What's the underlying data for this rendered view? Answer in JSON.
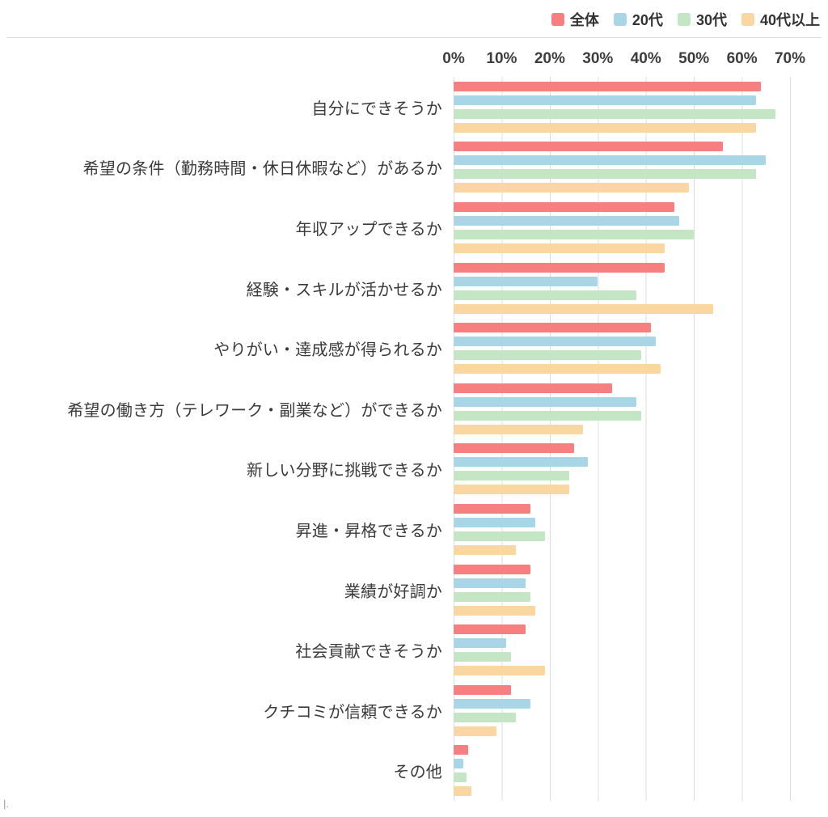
{
  "legend": {
    "position": "top-right"
  },
  "axis": {
    "ticks": [
      "0%",
      "10%",
      "20%",
      "30%",
      "40%",
      "50%",
      "60%",
      "70%"
    ]
  },
  "artifact_marks": "|.",
  "colors": {
    "zentai": "#F77F7F",
    "twenties": "#A8D6E6",
    "thirties": "#C5E6C5",
    "forties_plus": "#FAD7A0",
    "gridline": "#dcdcdc"
  },
  "chart_data": {
    "type": "bar",
    "orientation": "horizontal",
    "unit": "%",
    "xlim": [
      0,
      70
    ],
    "grid": true,
    "legend_position": "top-right",
    "title": "",
    "xlabel": "",
    "ylabel": "",
    "categories": [
      "自分にできそうか",
      "希望の条件（勤務時間・休日休暇など）があるか",
      "年収アップできるか",
      "経験・スキルが活かせるか",
      "やりがい・達成感が得られるか",
      "希望の働き方（テレワーク・副業など）ができるか",
      "新しい分野に挑戦できるか",
      "昇進・昇格できるか",
      "業績が好調か",
      "社会貢献できそうか",
      "クチコミが信頼できるか",
      "その他"
    ],
    "series": [
      {
        "name": "全体",
        "color": "#F77F7F",
        "values": [
          64,
          56,
          46,
          44,
          41,
          33,
          25,
          16,
          16,
          15,
          12,
          3
        ]
      },
      {
        "name": "20代",
        "color": "#A8D6E6",
        "values": [
          63,
          65,
          47,
          30,
          42,
          38,
          28,
          17,
          15,
          11,
          16,
          2
        ]
      },
      {
        "name": "30代",
        "color": "#C5E6C5",
        "values": [
          67,
          63,
          50,
          38,
          39,
          39,
          24,
          19,
          16,
          12,
          13,
          2.7
        ]
      },
      {
        "name": "40代以上",
        "color": "#FAD7A0",
        "values": [
          63,
          49,
          44,
          54,
          43,
          27,
          24,
          13,
          17,
          19,
          9,
          3.7
        ]
      }
    ]
  }
}
